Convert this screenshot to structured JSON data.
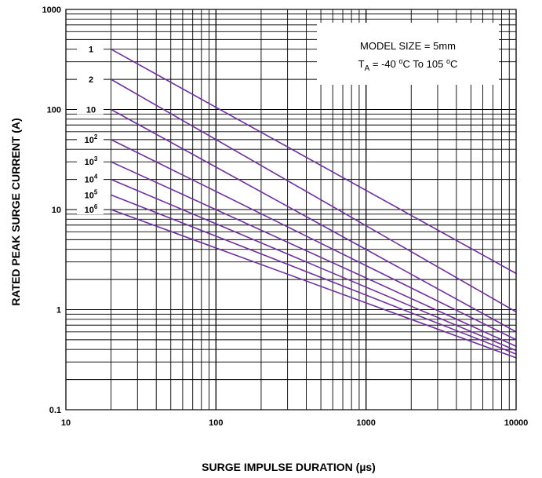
{
  "chart_data": {
    "type": "line",
    "x_scale": "log",
    "y_scale": "log",
    "xlim": [
      10,
      10000
    ],
    "ylim": [
      0.1,
      1000
    ],
    "xlabel": "SURGE IMPULSE DURATION (µs)",
    "ylabel": "RATED PEAK SURGE CURRENT (A)",
    "x_ticks": [
      "10",
      "100",
      "1000",
      "10000"
    ],
    "y_ticks": [
      "0.1",
      "1",
      "10",
      "100",
      "1000"
    ],
    "grid": true,
    "line_color": "#7030A0",
    "annotation": {
      "line1": "MODEL SIZE = 5mm",
      "line2_prefix": "T",
      "line2_sub": "A",
      "line2_mid1": " = -40 ",
      "line2_sup1": "o",
      "line2_mid2": "C To 105 ",
      "line2_sup2": "o",
      "line2_end": "C",
      "placement": "top-right"
    },
    "series": [
      {
        "label_base": "1",
        "label_exp": "",
        "x": [
          20,
          10000
        ],
        "y": [
          400,
          2.3
        ]
      },
      {
        "label_base": "2",
        "label_exp": "",
        "x": [
          20,
          10000
        ],
        "y": [
          200,
          0.95
        ]
      },
      {
        "label_base": "10",
        "label_exp": "",
        "x": [
          20,
          10000
        ],
        "y": [
          100,
          0.6
        ]
      },
      {
        "label_base": "10",
        "label_exp": "2",
        "x": [
          20,
          10000
        ],
        "y": [
          50,
          0.5
        ]
      },
      {
        "label_base": "10",
        "label_exp": "3",
        "x": [
          20,
          10000
        ],
        "y": [
          30,
          0.43
        ]
      },
      {
        "label_base": "10",
        "label_exp": "4",
        "x": [
          20,
          10000
        ],
        "y": [
          20,
          0.39
        ]
      },
      {
        "label_base": "10",
        "label_exp": "5",
        "x": [
          20,
          10000
        ],
        "y": [
          14,
          0.36
        ]
      },
      {
        "label_base": "10",
        "label_exp": "6",
        "x": [
          20,
          10000
        ],
        "y": [
          10,
          0.33
        ]
      }
    ]
  }
}
